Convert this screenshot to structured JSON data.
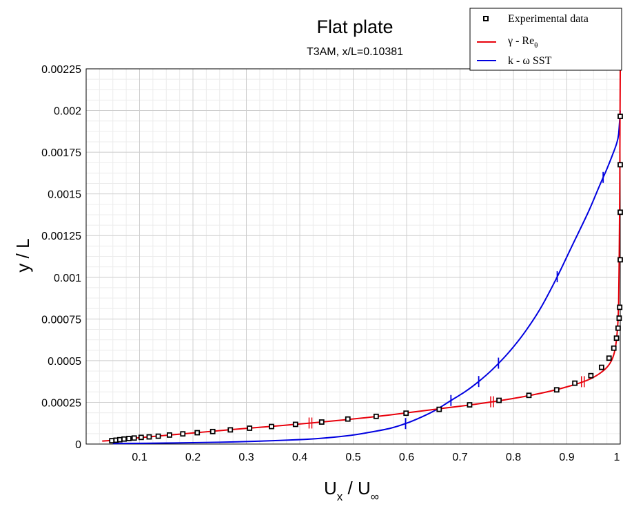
{
  "chart_data": {
    "type": "line",
    "title": "Flat plate",
    "subtitle": "T3AM, x/L=0.10381",
    "xlabel": {
      "main": "U",
      "sub1": "x",
      "sep": " / U",
      "sub2": "∞"
    },
    "ylabel": "y / L",
    "xlim": [
      0,
      1
    ],
    "ylim": [
      0,
      0.00225
    ],
    "x_ticks": [
      0.1,
      0.2,
      0.3,
      0.4,
      0.5,
      0.6,
      0.7,
      0.8,
      0.9,
      1
    ],
    "x_tick_labels": [
      "0.1",
      "0.2",
      "0.3",
      "0.4",
      "0.5",
      "0.6",
      "0.7",
      "0.8",
      "0.9",
      "1"
    ],
    "y_ticks": [
      0,
      0.00025,
      0.0005,
      0.00075,
      0.001,
      0.00125,
      0.0015,
      0.00175,
      0.002,
      0.00225
    ],
    "y_tick_labels": [
      "0",
      "0.00025",
      "0.0005",
      "0.00075",
      "0.001",
      "0.00125",
      "0.0015",
      "0.00175",
      "0.002",
      "0.00225"
    ],
    "grid": true,
    "legend_position": "top-right",
    "series": [
      {
        "name": "Experimental data",
        "kind": "markers",
        "color": "#000000",
        "x": [
          0.048,
          0.056,
          0.063,
          0.071,
          0.08,
          0.09,
          0.103,
          0.118,
          0.135,
          0.156,
          0.181,
          0.208,
          0.237,
          0.27,
          0.306,
          0.347,
          0.392,
          0.441,
          0.49,
          0.543,
          0.599,
          0.661,
          0.718,
          0.773,
          0.829,
          0.881,
          0.915,
          0.945,
          0.965,
          0.979,
          0.988,
          0.993,
          0.996,
          0.998,
          0.999,
          1.0,
          1.0,
          1.0,
          1.0
        ],
        "y": [
          2e-05,
          2.3e-05,
          2.6e-05,
          3e-05,
          3.3e-05,
          3.6e-05,
          4e-05,
          4.3e-05,
          4.7e-05,
          5.4e-05,
          6.1e-05,
          6.8e-05,
          7.5e-05,
          8.5e-05,
          9.5e-05,
          0.000105,
          0.000118,
          0.000132,
          0.00015,
          0.000166,
          0.000185,
          0.000208,
          0.000235,
          0.000262,
          0.000292,
          0.000325,
          0.000365,
          0.00041,
          0.00046,
          0.000515,
          0.000575,
          0.000635,
          0.000695,
          0.000755,
          0.00082,
          0.001105,
          0.00139,
          0.001675,
          0.001965
        ]
      },
      {
        "name": "γ - Reθ",
        "name_main": "γ - Re",
        "name_sub": "θ",
        "kind": "line",
        "color": "#e8000b",
        "x": [
          0.03,
          0.05,
          0.08,
          0.12,
          0.17,
          0.22,
          0.27,
          0.32,
          0.37,
          0.42,
          0.47,
          0.52,
          0.57,
          0.62,
          0.67,
          0.72,
          0.77,
          0.82,
          0.87,
          0.91,
          0.94,
          0.96,
          0.975,
          0.985,
          0.991,
          0.995,
          0.997,
          0.998,
          0.999,
          0.9995,
          1.0
        ],
        "y": [
          1.8e-05,
          2.2e-05,
          3.2e-05,
          4.4e-05,
          5.8e-05,
          7.2e-05,
          8.6e-05,
          9.9e-05,
          0.000112,
          0.000126,
          0.000141,
          0.000157,
          0.000175,
          0.000195,
          0.000215,
          0.000235,
          0.000258,
          0.000285,
          0.000318,
          0.000352,
          0.000385,
          0.00042,
          0.00046,
          0.00051,
          0.00058,
          0.0007,
          0.00085,
          0.0011,
          0.0015,
          0.0019,
          0.00224
        ],
        "hatch_x": [
          0.42,
          0.76,
          0.93
        ]
      },
      {
        "name": "k - ω SST",
        "kind": "line",
        "color": "#0000e0",
        "x": [
          0.05,
          0.15,
          0.25,
          0.35,
          0.43,
          0.49,
          0.53,
          0.57,
          0.6,
          0.63,
          0.655,
          0.68,
          0.71,
          0.735,
          0.76,
          0.79,
          0.82,
          0.85,
          0.88,
          0.91,
          0.94,
          0.96,
          0.975,
          0.985,
          0.993,
          0.997,
          1.0
        ],
        "y": [
          3e-06,
          6e-06,
          1.1e-05,
          2e-05,
          3.2e-05,
          5e-05,
          7e-05,
          9.5e-05,
          0.000125,
          0.000165,
          0.000205,
          0.000255,
          0.000315,
          0.000375,
          0.000445,
          0.000545,
          0.000665,
          0.00081,
          0.00099,
          0.00119,
          0.00139,
          0.00154,
          0.00165,
          0.00173,
          0.0018,
          0.00186,
          0.002
        ],
        "hatch_x": [
          0.598,
          0.683,
          0.735,
          0.772,
          0.882,
          0.968
        ]
      }
    ]
  }
}
